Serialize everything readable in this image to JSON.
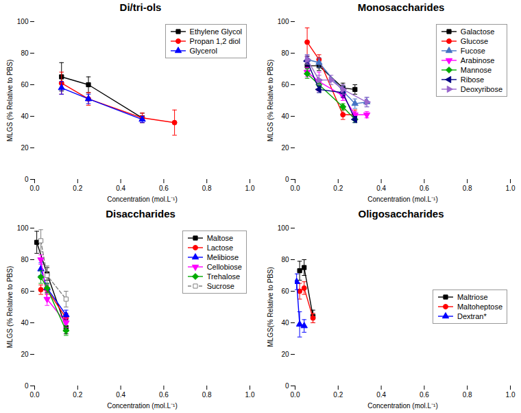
{
  "chart_data": [
    {
      "type": "line",
      "title": "Di/tri-ols",
      "x_label": "Concentration (mol.L⁻¹)",
      "y_label": "MLGS (% Relative to PBS)",
      "xlim": [
        0.0,
        1.0
      ],
      "ylim": [
        0,
        100
      ],
      "xticks": [
        {
          "value": 0.0,
          "label": "0.0"
        },
        {
          "value": 0.2,
          "label": "0.2"
        },
        {
          "value": 0.4,
          "label": "0.4"
        },
        {
          "value": 0.6,
          "label": "0.6"
        },
        {
          "value": 0.8,
          "label": "0.8"
        },
        {
          "value": 1.0,
          "label": "1.0"
        }
      ],
      "yticks": [
        0,
        20,
        40,
        60,
        80,
        100
      ],
      "legend": "upper right",
      "series": [
        {
          "name": "Ethylene Glycol",
          "color": "black",
          "marker": "square",
          "line_style": "solid",
          "x": [
            0.125,
            0.25,
            0.5
          ],
          "values": [
            65,
            60,
            39
          ],
          "error": [
            9,
            5,
            3
          ]
        },
        {
          "name": "Propan 1,2 diol",
          "color": "red",
          "marker": "circle",
          "line_style": "solid",
          "x": [
            0.125,
            0.25,
            0.5,
            0.65
          ],
          "values": [
            61,
            51,
            39,
            36
          ],
          "error": [
            7,
            4,
            3,
            8
          ]
        },
        {
          "name": "Glycerol",
          "color": "blue",
          "marker": "triangle-up",
          "line_style": "solid",
          "x": [
            0.125,
            0.25,
            0.5
          ],
          "values": [
            58,
            51,
            38
          ],
          "error": [
            4,
            3,
            2
          ]
        }
      ]
    },
    {
      "type": "line",
      "title": "Monosaccharides",
      "x_label": "Concentration (mol.L⁻¹)",
      "y_label": "MLGS (% Relative to PBS)",
      "xlim": [
        0.0,
        1.0
      ],
      "ylim": [
        0,
        100
      ],
      "xticks": [
        {
          "value": 0.0,
          "label": "0.0"
        },
        {
          "value": 0.2,
          "label": "0.2"
        },
        {
          "value": 0.4,
          "label": "0.4"
        },
        {
          "value": 0.6,
          "label": "0.6"
        },
        {
          "value": 0.8,
          "label": "0.8"
        },
        {
          "value": 1.0,
          "label": "1.0"
        }
      ],
      "yticks": [
        0,
        20,
        40,
        60,
        80,
        100
      ],
      "legend": "upper right",
      "series": [
        {
          "name": "Galactose",
          "color": "black",
          "marker": "square",
          "line_style": "solid",
          "x": [
            0.056,
            0.111,
            0.222,
            0.278
          ],
          "values": [
            72,
            72,
            58,
            57
          ],
          "error": [
            3,
            3,
            3,
            3
          ]
        },
        {
          "name": "Glucose",
          "color": "red",
          "marker": "circle",
          "line_style": "solid",
          "x": [
            0.056,
            0.111,
            0.222,
            0.278
          ],
          "values": [
            87,
            76,
            41,
            41
          ],
          "error": [
            9,
            3,
            3,
            3
          ]
        },
        {
          "name": "Fucose",
          "color": "#4472C4",
          "marker": "triangle-up",
          "line_style": "solid",
          "x": [
            0.056,
            0.111,
            0.222,
            0.278,
            0.333
          ],
          "values": [
            76,
            74,
            56,
            48,
            49
          ],
          "error": [
            3,
            3,
            3,
            3,
            3
          ]
        },
        {
          "name": "Arabinose",
          "color": "magenta",
          "marker": "triangle-down",
          "line_style": "solid",
          "x": [
            0.056,
            0.111,
            0.222,
            0.278,
            0.333
          ],
          "values": [
            68,
            62,
            53,
            41,
            41
          ],
          "error": [
            3,
            6,
            3,
            2,
            2
          ]
        },
        {
          "name": "Mannose",
          "color": "#00AA00",
          "marker": "diamond",
          "line_style": "solid",
          "x": [
            0.056,
            0.111,
            0.222,
            0.278
          ],
          "values": [
            67,
            60,
            46,
            38
          ],
          "error": [
            3,
            3,
            2,
            2
          ]
        },
        {
          "name": "Ribose",
          "color": "#000080",
          "marker": "triangle-left",
          "line_style": "solid",
          "x": [
            0.056,
            0.111,
            0.222,
            0.278
          ],
          "values": [
            75,
            57,
            55,
            38
          ],
          "error": [
            3,
            2,
            3,
            2
          ]
        },
        {
          "name": "Deoxyribose",
          "color": "#9966CC",
          "marker": "triangle-right",
          "line_style": "solid",
          "x": [
            0.056,
            0.111,
            0.167,
            0.222,
            0.333
          ],
          "values": [
            76,
            63,
            63,
            57,
            49
          ],
          "error": [
            3,
            3,
            3,
            3,
            3
          ]
        }
      ]
    },
    {
      "type": "line",
      "title": "Disaccharides",
      "x_label": "Concentration (mol.L⁻¹)",
      "y_label": "MLGS (% Relative to PBS)",
      "xlim": [
        0.0,
        1.0
      ],
      "ylim": [
        0,
        100
      ],
      "xticks": [
        {
          "value": 0.0,
          "label": "0.0"
        },
        {
          "value": 0.2,
          "label": "0.2"
        },
        {
          "value": 0.4,
          "label": "0.4"
        },
        {
          "value": 0.6,
          "label": "0.6"
        },
        {
          "value": 0.8,
          "label": "0.8"
        },
        {
          "value": 1.0,
          "label": "1.0"
        }
      ],
      "yticks": [
        0,
        20,
        40,
        60,
        80,
        100
      ],
      "legend": "upper right",
      "series": [
        {
          "name": "Maltose",
          "color": "black",
          "marker": "square",
          "line_style": "solid",
          "x": [
            0.01,
            0.058,
            0.146
          ],
          "values": [
            91,
            71,
            37
          ],
          "error": [
            7,
            4,
            4
          ]
        },
        {
          "name": "Lactose",
          "color": "red",
          "marker": "circle",
          "line_style": "solid",
          "x": [
            0.029,
            0.058,
            0.146
          ],
          "values": [
            61,
            61,
            43
          ],
          "error": [
            3,
            3,
            3
          ]
        },
        {
          "name": "Melibiose",
          "color": "blue",
          "marker": "triangle-up",
          "line_style": "solid",
          "x": [
            0.029,
            0.058,
            0.146
          ],
          "values": [
            74,
            62,
            45
          ],
          "error": [
            4,
            3,
            3
          ]
        },
        {
          "name": "Cellobiose",
          "color": "magenta",
          "marker": "triangle-down",
          "line_style": "solid",
          "x": [
            0.029,
            0.058,
            0.146
          ],
          "values": [
            80,
            55,
            40
          ],
          "error": [
            3,
            4,
            3
          ]
        },
        {
          "name": "Trehalose",
          "color": "#00AA00",
          "marker": "diamond",
          "line_style": "solid",
          "x": [
            0.029,
            0.058,
            0.146
          ],
          "values": [
            69,
            62,
            35
          ],
          "error": [
            4,
            3,
            3
          ]
        },
        {
          "name": "Sucrose",
          "color": "gray",
          "marker": "square-open",
          "line_style": "dashed",
          "x": [
            0.029,
            0.058,
            0.146
          ],
          "values": [
            92,
            70,
            55
          ],
          "error": [
            7,
            6,
            5
          ]
        }
      ]
    },
    {
      "type": "line",
      "title": "Oligosaccharides",
      "x_label": "Concentration (mol.L⁻¹)",
      "y_label": "MLGS(% Relative to PBS)",
      "xlim": [
        0.0,
        1.0
      ],
      "ylim": [
        0,
        100
      ],
      "xticks": [
        {
          "value": 0.0,
          "label": "0.0"
        },
        {
          "value": 0.2,
          "label": "0.2"
        },
        {
          "value": 0.4,
          "label": "0.4"
        },
        {
          "value": 0.6,
          "label": "0.6"
        },
        {
          "value": 0.8,
          "label": "0.8"
        },
        {
          "value": 1.0,
          "label": "1.0"
        }
      ],
      "yticks": [
        0,
        20,
        40,
        60,
        80,
        100
      ],
      "legend": "center right",
      "series": [
        {
          "name": "Maltriose",
          "color": "black",
          "marker": "square",
          "line_style": "solid",
          "x": [
            0.021,
            0.042,
            0.083
          ],
          "values": [
            73,
            75,
            44
          ],
          "error": [
            6,
            5,
            4
          ]
        },
        {
          "name": "Maltoheptose",
          "color": "red",
          "marker": "circle",
          "line_style": "solid",
          "x": [
            0.021,
            0.042,
            0.083
          ],
          "values": [
            60,
            62,
            43
          ],
          "error": [
            5,
            4,
            3
          ]
        },
        {
          "name": "Dextran*",
          "color": "blue",
          "marker": "triangle-up",
          "line_style": "solid",
          "x": [
            0.007,
            0.021,
            0.042
          ],
          "values": [
            66,
            39,
            38
          ],
          "error": [
            5,
            8,
            4
          ]
        }
      ]
    }
  ]
}
